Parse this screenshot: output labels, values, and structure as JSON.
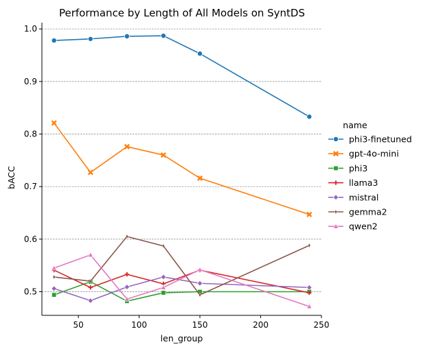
{
  "chart_data": {
    "type": "line",
    "title": "Performance by Length of  All Models on SyntDS",
    "xlabel": "len_group",
    "ylabel": "bACC",
    "xlim": [
      20,
      250
    ],
    "ylim": [
      0.455,
      1.012
    ],
    "xticks": [
      50,
      100,
      150,
      200,
      250
    ],
    "yticks": [
      0.5,
      0.6,
      0.7,
      0.8,
      0.9,
      1.0
    ],
    "ytick_labels": [
      "0.5",
      "0.6",
      "0.7",
      "0.8",
      "0.9",
      "1.0"
    ],
    "grid": "horizontal-dashed",
    "legend_title": "name",
    "legend_position": "right",
    "x": [
      30,
      60,
      90,
      120,
      150,
      240
    ],
    "series": [
      {
        "name": "phi3-finetuned",
        "color": "#1f77b4",
        "marker": "circle",
        "values": [
          0.978,
          0.981,
          0.986,
          0.987,
          0.953,
          0.833
        ]
      },
      {
        "name": "gpt-4o-mini",
        "color": "#ff7f0e",
        "marker": "x",
        "values": [
          0.821,
          0.727,
          0.776,
          0.76,
          0.716,
          0.647
        ]
      },
      {
        "name": "phi3",
        "color": "#2ca02c",
        "marker": "square",
        "values": [
          0.494,
          0.519,
          0.482,
          0.498,
          0.5,
          0.5
        ]
      },
      {
        "name": "llama3",
        "color": "#d62728",
        "marker": "plus",
        "values": [
          0.541,
          0.508,
          0.533,
          0.515,
          0.541,
          0.498
        ]
      },
      {
        "name": "mistral",
        "color": "#9467bd",
        "marker": "diamond",
        "values": [
          0.506,
          0.483,
          0.509,
          0.528,
          0.516,
          0.508
        ]
      },
      {
        "name": "gemma2",
        "color": "#8c564b",
        "marker": "thin_diamond",
        "values": [
          0.528,
          0.52,
          0.605,
          0.587,
          0.494,
          0.588
        ]
      },
      {
        "name": "qwen2",
        "color": "#e377c2",
        "marker": "triangle",
        "values": [
          0.545,
          0.57,
          0.486,
          0.508,
          0.542,
          0.472
        ]
      }
    ]
  }
}
